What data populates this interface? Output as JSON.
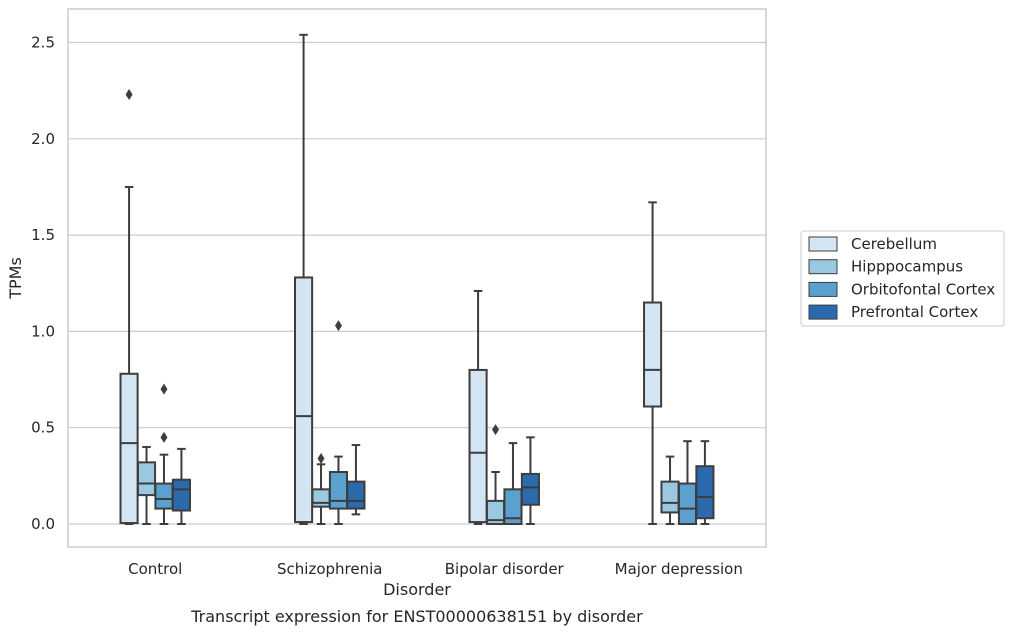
{
  "chart_data": {
    "type": "box",
    "caption": "Transcript expression for ENST00000638151 by disorder",
    "xlabel": "Disorder",
    "ylabel": "TPMs",
    "ylim": [
      -0.12,
      2.67
    ],
    "yticks": [
      0.0,
      0.5,
      1.0,
      1.5,
      2.0,
      2.5
    ],
    "ytick_labels": [
      "0.0",
      "0.5",
      "1.0",
      "1.5",
      "2.0",
      "2.5"
    ],
    "grid": "horizontal",
    "legend_position": "right",
    "categories": [
      "Control",
      "Schizophrenia",
      "Bipolar disorder",
      "Major depression"
    ],
    "series": [
      {
        "name": "Cerebellum",
        "color": "#d3e4f3",
        "boxes": [
          {
            "whislo": 0.0,
            "q1": 0.005,
            "med": 0.42,
            "q3": 0.78,
            "whishi": 1.75,
            "fliers": [
              2.23
            ]
          },
          {
            "whislo": 0.0,
            "q1": 0.01,
            "med": 0.56,
            "q3": 1.28,
            "whishi": 2.54,
            "fliers": []
          },
          {
            "whislo": 0.0,
            "q1": 0.01,
            "med": 0.37,
            "q3": 0.8,
            "whishi": 1.21,
            "fliers": []
          },
          {
            "whislo": 0.0,
            "q1": 0.61,
            "med": 0.8,
            "q3": 1.15,
            "whishi": 1.67,
            "fliers": []
          }
        ]
      },
      {
        "name": "Hipppocampus",
        "color": "#9ac8e0",
        "boxes": [
          {
            "whislo": 0.0,
            "q1": 0.15,
            "med": 0.21,
            "q3": 0.32,
            "whishi": 0.4,
            "fliers": []
          },
          {
            "whislo": 0.0,
            "q1": 0.09,
            "med": 0.11,
            "q3": 0.18,
            "whishi": 0.31,
            "fliers": [
              0.34
            ]
          },
          {
            "whislo": 0.0,
            "q1": 0.0,
            "med": 0.02,
            "q3": 0.12,
            "whishi": 0.27,
            "fliers": [
              0.49
            ]
          },
          {
            "whislo": 0.0,
            "q1": 0.06,
            "med": 0.11,
            "q3": 0.22,
            "whishi": 0.35,
            "fliers": []
          }
        ]
      },
      {
        "name": "Orbitofontal Cortex",
        "color": "#5ba1cf",
        "boxes": [
          {
            "whislo": 0.0,
            "q1": 0.08,
            "med": 0.13,
            "q3": 0.21,
            "whishi": 0.36,
            "fliers": [
              0.45,
              0.7
            ]
          },
          {
            "whislo": 0.0,
            "q1": 0.08,
            "med": 0.12,
            "q3": 0.27,
            "whishi": 0.35,
            "fliers": [
              1.03
            ]
          },
          {
            "whislo": 0.0,
            "q1": 0.0,
            "med": 0.03,
            "q3": 0.18,
            "whishi": 0.42,
            "fliers": []
          },
          {
            "whislo": 0.0,
            "q1": 0.0,
            "med": 0.08,
            "q3": 0.21,
            "whishi": 0.43,
            "fliers": []
          }
        ]
      },
      {
        "name": "Prefrontal Cortex",
        "color": "#2b6aad",
        "boxes": [
          {
            "whislo": 0.0,
            "q1": 0.07,
            "med": 0.18,
            "q3": 0.23,
            "whishi": 0.39,
            "fliers": []
          },
          {
            "whislo": 0.05,
            "q1": 0.08,
            "med": 0.12,
            "q3": 0.22,
            "whishi": 0.41,
            "fliers": []
          },
          {
            "whislo": 0.0,
            "q1": 0.1,
            "med": 0.19,
            "q3": 0.26,
            "whishi": 0.45,
            "fliers": []
          },
          {
            "whislo": 0.0,
            "q1": 0.03,
            "med": 0.14,
            "q3": 0.3,
            "whishi": 0.43,
            "fliers": []
          }
        ]
      }
    ]
  }
}
